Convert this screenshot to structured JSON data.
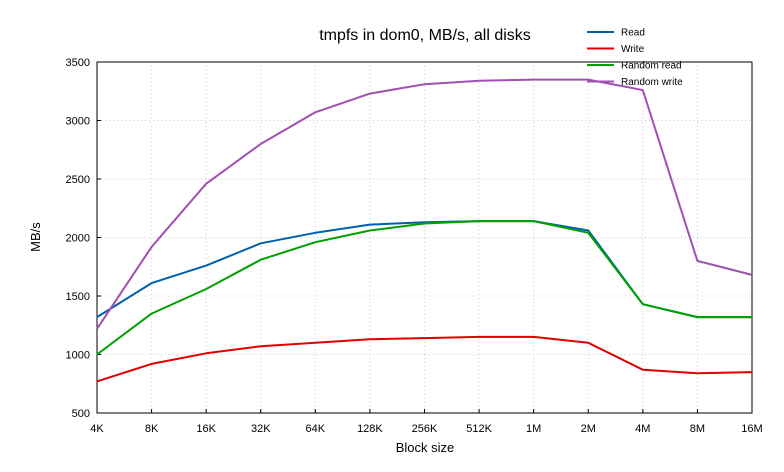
{
  "chart_data": {
    "type": "line",
    "title": "tmpfs in dom0, MB/s, all disks",
    "xlabel": "Block size",
    "ylabel": "MB/s",
    "categories": [
      "4K",
      "8K",
      "16K",
      "32K",
      "64K",
      "128K",
      "256K",
      "512K",
      "1M",
      "2M",
      "4M",
      "8M",
      "16M"
    ],
    "ylim": [
      500,
      3500
    ],
    "yticks": [
      500,
      1000,
      1500,
      2000,
      2500,
      3000,
      3500
    ],
    "grid": true,
    "legend_position": "top-right",
    "series": [
      {
        "name": "Read",
        "color": "#0060b0",
        "values": [
          1320,
          1610,
          1760,
          1950,
          2040,
          2110,
          2130,
          2140,
          2140,
          2060,
          1430,
          1320,
          1320
        ]
      },
      {
        "name": "Write",
        "color": "#e00000",
        "values": [
          770,
          920,
          1010,
          1070,
          1100,
          1130,
          1140,
          1150,
          1150,
          1100,
          870,
          840,
          850
        ]
      },
      {
        "name": "Random read",
        "color": "#00a000",
        "values": [
          1000,
          1350,
          1560,
          1810,
          1960,
          2060,
          2120,
          2140,
          2140,
          2040,
          1430,
          1320,
          1320
        ]
      },
      {
        "name": "Random write",
        "color": "#a050b0",
        "values": [
          1220,
          1920,
          2460,
          2800,
          3070,
          3230,
          3310,
          3340,
          3350,
          3350,
          3260,
          1800,
          1680
        ]
      }
    ]
  }
}
